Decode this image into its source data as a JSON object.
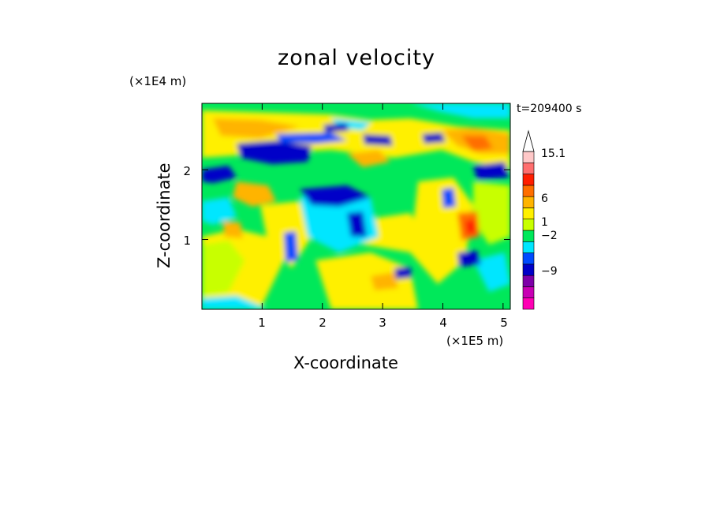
{
  "chart_data": {
    "type": "heatmap",
    "title": "zonal velocity",
    "xlabel": "X-coordinate",
    "ylabel": "Z-coordinate",
    "x_scale_label": "(×1E5 m)",
    "y_scale_label": "(×1E4 m)",
    "time_label": "t=209400 s",
    "xlim": [
      0,
      5.12
    ],
    "ylim": [
      0,
      2.95
    ],
    "x_ticks": [
      1,
      2,
      3,
      4,
      5
    ],
    "y_ticks": [
      1,
      2
    ],
    "x_tick_labels": [
      "1",
      "2",
      "3",
      "4",
      "5"
    ],
    "y_tick_labels": [
      "1",
      "2"
    ],
    "colorbar": {
      "levels": [
        -15.1,
        -12,
        -9,
        -6,
        -4,
        -2,
        -1,
        0,
        1,
        2,
        4,
        6,
        9,
        12,
        15.1
      ],
      "tick_labels": [
        {
          "text": "15.1",
          "value": 15.1
        },
        {
          "text": "6",
          "value": 6
        },
        {
          "text": "1",
          "value": 1
        },
        {
          "text": "−2",
          "value": -2
        },
        {
          "text": "−9",
          "value": -9
        }
      ],
      "colors": [
        "#ff00b4",
        "#c800b4",
        "#7d00a8",
        "#0000c8",
        "#004bff",
        "#00e6ff",
        "#00e85a",
        "#c8ff00",
        "#fff000",
        "#ffb400",
        "#ff6e00",
        "#ff1e00",
        "#ff6e6e",
        "#ffc8c8"
      ],
      "extend": "max"
    }
  }
}
